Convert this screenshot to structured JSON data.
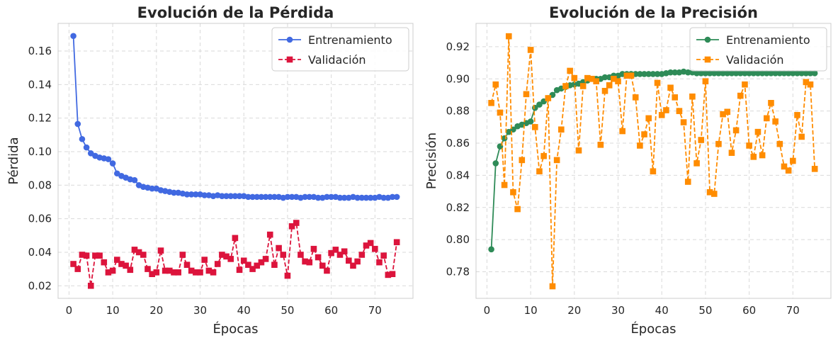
{
  "chart_data": [
    {
      "type": "line",
      "title": "Evolución de la Pérdida",
      "xlabel": "Épocas",
      "ylabel": "Pérdida",
      "xlim": [
        -2.5,
        78.7
      ],
      "ylim": [
        0.0125,
        0.1765
      ],
      "xticks": [
        0,
        10,
        20,
        30,
        40,
        50,
        60,
        70
      ],
      "xtick_labels": [
        "0",
        "10",
        "20",
        "30",
        "40",
        "50",
        "60",
        "70"
      ],
      "yticks": [
        0.02,
        0.04,
        0.06,
        0.08,
        0.1,
        0.12,
        0.14,
        0.16
      ],
      "ytick_labels": [
        "0.02",
        "0.04",
        "0.06",
        "0.08",
        "0.10",
        "0.12",
        "0.14",
        "0.16"
      ],
      "grid": true,
      "legend_position": "top-right",
      "x": [
        1,
        2,
        3,
        4,
        5,
        6,
        7,
        8,
        9,
        10,
        11,
        12,
        13,
        14,
        15,
        16,
        17,
        18,
        19,
        20,
        21,
        22,
        23,
        24,
        25,
        26,
        27,
        28,
        29,
        30,
        31,
        32,
        33,
        34,
        35,
        36,
        37,
        38,
        39,
        40,
        41,
        42,
        43,
        44,
        45,
        46,
        47,
        48,
        49,
        50,
        51,
        52,
        53,
        54,
        55,
        56,
        57,
        58,
        59,
        60,
        61,
        62,
        63,
        64,
        65,
        66,
        67,
        68,
        69,
        70,
        71,
        72,
        73,
        74,
        75
      ],
      "series": [
        {
          "name": "Entrenamiento",
          "color": "#4169e1",
          "marker": "circle",
          "linestyle": "solid",
          "values": [
            0.169,
            0.1165,
            0.1075,
            0.1025,
            0.099,
            0.0975,
            0.0965,
            0.096,
            0.0955,
            0.093,
            0.087,
            0.0855,
            0.0845,
            0.0835,
            0.083,
            0.08,
            0.079,
            0.0785,
            0.078,
            0.078,
            0.077,
            0.0765,
            0.076,
            0.0755,
            0.0755,
            0.075,
            0.0745,
            0.0745,
            0.0745,
            0.0745,
            0.074,
            0.074,
            0.0735,
            0.074,
            0.0735,
            0.0735,
            0.0735,
            0.0735,
            0.0735,
            0.0735,
            0.073,
            0.073,
            0.073,
            0.073,
            0.073,
            0.073,
            0.073,
            0.073,
            0.0725,
            0.073,
            0.073,
            0.073,
            0.0725,
            0.073,
            0.073,
            0.073,
            0.0725,
            0.0725,
            0.073,
            0.073,
            0.073,
            0.0725,
            0.0725,
            0.0725,
            0.073,
            0.0725,
            0.0725,
            0.0725,
            0.0725,
            0.0725,
            0.073,
            0.0725,
            0.0725,
            0.073,
            0.073
          ]
        },
        {
          "name": "Validación",
          "color": "#dc143c",
          "marker": "square",
          "linestyle": "dashed",
          "values": [
            0.033,
            0.03,
            0.0385,
            0.038,
            0.02,
            0.038,
            0.038,
            0.034,
            0.028,
            0.029,
            0.0355,
            0.033,
            0.032,
            0.0295,
            0.0415,
            0.04,
            0.0385,
            0.03,
            0.027,
            0.028,
            0.041,
            0.029,
            0.029,
            0.028,
            0.028,
            0.0385,
            0.0325,
            0.029,
            0.028,
            0.028,
            0.0355,
            0.029,
            0.028,
            0.033,
            0.0385,
            0.0375,
            0.036,
            0.0485,
            0.0295,
            0.035,
            0.0325,
            0.03,
            0.032,
            0.034,
            0.036,
            0.0505,
            0.0325,
            0.0425,
            0.0385,
            0.026,
            0.0555,
            0.0575,
            0.0385,
            0.0345,
            0.034,
            0.042,
            0.037,
            0.032,
            0.029,
            0.0395,
            0.0415,
            0.0385,
            0.0405,
            0.035,
            0.032,
            0.0345,
            0.0385,
            0.044,
            0.0455,
            0.042,
            0.034,
            0.038,
            0.0265,
            0.027,
            0.046
          ]
        }
      ]
    },
    {
      "type": "line",
      "title": "Evolución de la Precisión",
      "xlabel": "Épocas",
      "ylabel": "Precisión",
      "xlim": [
        -2.5,
        78.7
      ],
      "ylim": [
        0.7635,
        0.9345
      ],
      "xticks": [
        0,
        10,
        20,
        30,
        40,
        50,
        60,
        70
      ],
      "xtick_labels": [
        "0",
        "10",
        "20",
        "30",
        "40",
        "50",
        "60",
        "70"
      ],
      "yticks": [
        0.78,
        0.8,
        0.82,
        0.84,
        0.86,
        0.88,
        0.9,
        0.92
      ],
      "ytick_labels": [
        "0.78",
        "0.80",
        "0.82",
        "0.84",
        "0.86",
        "0.88",
        "0.90",
        "0.92"
      ],
      "grid": true,
      "legend_position": "top-right",
      "x": [
        1,
        2,
        3,
        4,
        5,
        6,
        7,
        8,
        9,
        10,
        11,
        12,
        13,
        14,
        15,
        16,
        17,
        18,
        19,
        20,
        21,
        22,
        23,
        24,
        25,
        26,
        27,
        28,
        29,
        30,
        31,
        32,
        33,
        34,
        35,
        36,
        37,
        38,
        39,
        40,
        41,
        42,
        43,
        44,
        45,
        46,
        47,
        48,
        49,
        50,
        51,
        52,
        53,
        54,
        55,
        56,
        57,
        58,
        59,
        60,
        61,
        62,
        63,
        64,
        65,
        66,
        67,
        68,
        69,
        70,
        71,
        72,
        73,
        74,
        75
      ],
      "series": [
        {
          "name": "Entrenamiento",
          "color": "#2e8b57",
          "marker": "circle",
          "linestyle": "solid",
          "values": [
            0.794,
            0.8475,
            0.858,
            0.863,
            0.867,
            0.8685,
            0.8705,
            0.8715,
            0.8725,
            0.8735,
            0.882,
            0.884,
            0.886,
            0.888,
            0.89,
            0.893,
            0.894,
            0.895,
            0.896,
            0.8965,
            0.897,
            0.898,
            0.899,
            0.9,
            0.9,
            0.9,
            0.901,
            0.901,
            0.902,
            0.902,
            0.903,
            0.903,
            0.903,
            0.903,
            0.903,
            0.903,
            0.903,
            0.903,
            0.903,
            0.903,
            0.9035,
            0.904,
            0.904,
            0.904,
            0.9045,
            0.904,
            0.904,
            0.9035,
            0.9035,
            0.9035,
            0.9035,
            0.9035,
            0.9035,
            0.9035,
            0.9035,
            0.9035,
            0.9035,
            0.9035,
            0.9035,
            0.9035,
            0.9035,
            0.9035,
            0.9035,
            0.9035,
            0.9035,
            0.9035,
            0.9035,
            0.9035,
            0.9035,
            0.9035,
            0.9035,
            0.9035,
            0.9035,
            0.9035,
            0.9035
          ]
        },
        {
          "name": "Validación",
          "color": "#ff8c00",
          "marker": "square",
          "linestyle": "dashed",
          "values": [
            0.885,
            0.8965,
            0.879,
            0.834,
            0.9265,
            0.8295,
            0.819,
            0.8495,
            0.8905,
            0.918,
            0.87,
            0.8425,
            0.852,
            0.888,
            0.771,
            0.8495,
            0.8685,
            0.8955,
            0.905,
            0.9005,
            0.8555,
            0.8955,
            0.9005,
            0.9,
            0.8985,
            0.859,
            0.8925,
            0.896,
            0.9,
            0.8985,
            0.8675,
            0.902,
            0.902,
            0.8885,
            0.8585,
            0.8655,
            0.8755,
            0.8425,
            0.8975,
            0.8775,
            0.8805,
            0.8945,
            0.8885,
            0.88,
            0.873,
            0.836,
            0.889,
            0.8475,
            0.862,
            0.8985,
            0.8295,
            0.8285,
            0.8595,
            0.878,
            0.8795,
            0.854,
            0.868,
            0.8895,
            0.8965,
            0.8585,
            0.8515,
            0.867,
            0.8525,
            0.8755,
            0.885,
            0.8735,
            0.8595,
            0.8455,
            0.843,
            0.849,
            0.8775,
            0.864,
            0.898,
            0.8965,
            0.844
          ]
        }
      ]
    }
  ]
}
